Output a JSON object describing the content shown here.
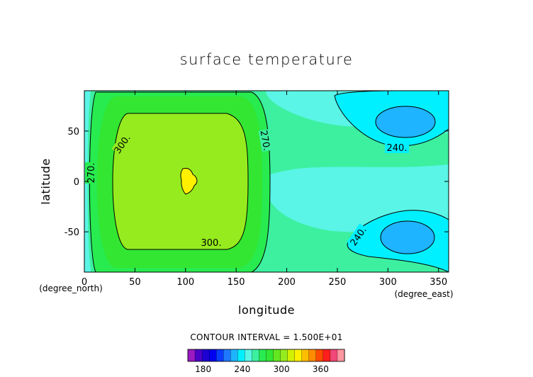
{
  "chart_data": {
    "type": "heatmap",
    "title": "surface temperature",
    "xlabel": "longitude",
    "ylabel": "latitude",
    "x_unit": "(degree_east)",
    "y_unit": "(degree_north)",
    "xlim": [
      0,
      360
    ],
    "ylim": [
      -90,
      90
    ],
    "x_ticks": [
      0,
      50,
      100,
      150,
      200,
      250,
      300,
      350
    ],
    "y_ticks": [
      -50,
      0,
      50
    ],
    "field": {
      "warm_center": {
        "lon": 95,
        "lat": 0,
        "value": 315
      },
      "cold_centers": [
        {
          "lon": 315,
          "lat": 60,
          "value": 225
        },
        {
          "lon": 315,
          "lat": -60,
          "value": 225
        }
      ]
    },
    "contour_lines": [
      {
        "level": 240,
        "label": "240."
      },
      {
        "level": 270,
        "label": "270."
      },
      {
        "level": 300,
        "label": "300."
      }
    ],
    "contour_interval_text": "CONTOUR INTERVAL = 1.500E+01",
    "colorbar": {
      "min": 150,
      "max": 390,
      "step": 15,
      "tick_values": [
        180,
        240,
        300,
        360
      ],
      "colors": [
        "#9b1ac2",
        "#4b00c8",
        "#1e00d2",
        "#0000f0",
        "#0a3cff",
        "#1e78ff",
        "#1eb4ff",
        "#00f0ff",
        "#5af5e6",
        "#3cf0a0",
        "#28eb50",
        "#32e632",
        "#64e61e",
        "#96eb1e",
        "#d2f000",
        "#fff000",
        "#ffbe00",
        "#ff8c00",
        "#ff4b00",
        "#ff1e1e",
        "#f04678",
        "#ff96a0"
      ]
    }
  }
}
